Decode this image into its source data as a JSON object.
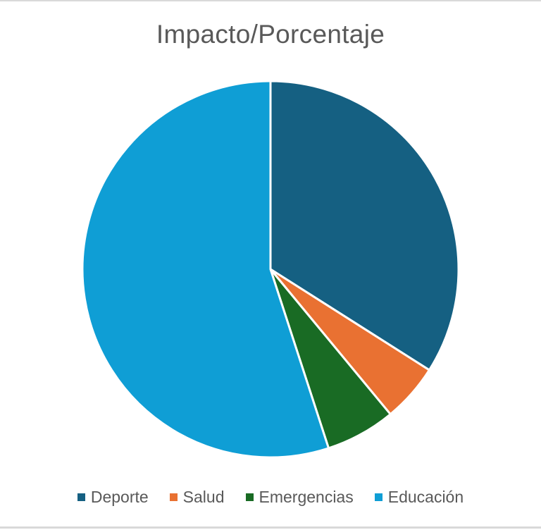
{
  "chart_data": {
    "type": "pie",
    "title": "Impacto/Porcentaje",
    "categories": [
      "Deporte",
      "Salud",
      "Emergencias",
      "Educación"
    ],
    "values": [
      34,
      5,
      6,
      55
    ],
    "colors": [
      "#156082",
      "#e97132",
      "#196b24",
      "#0f9ed5"
    ],
    "start_angle_deg": 0,
    "direction": "clockwise",
    "legend_position": "bottom",
    "data_labels": false
  },
  "legend": {
    "items": [
      {
        "label": "Deporte",
        "color": "#156082"
      },
      {
        "label": "Salud",
        "color": "#e97132"
      },
      {
        "label": "Emergencias",
        "color": "#196b24"
      },
      {
        "label": "Educación",
        "color": "#0f9ed5"
      }
    ]
  }
}
